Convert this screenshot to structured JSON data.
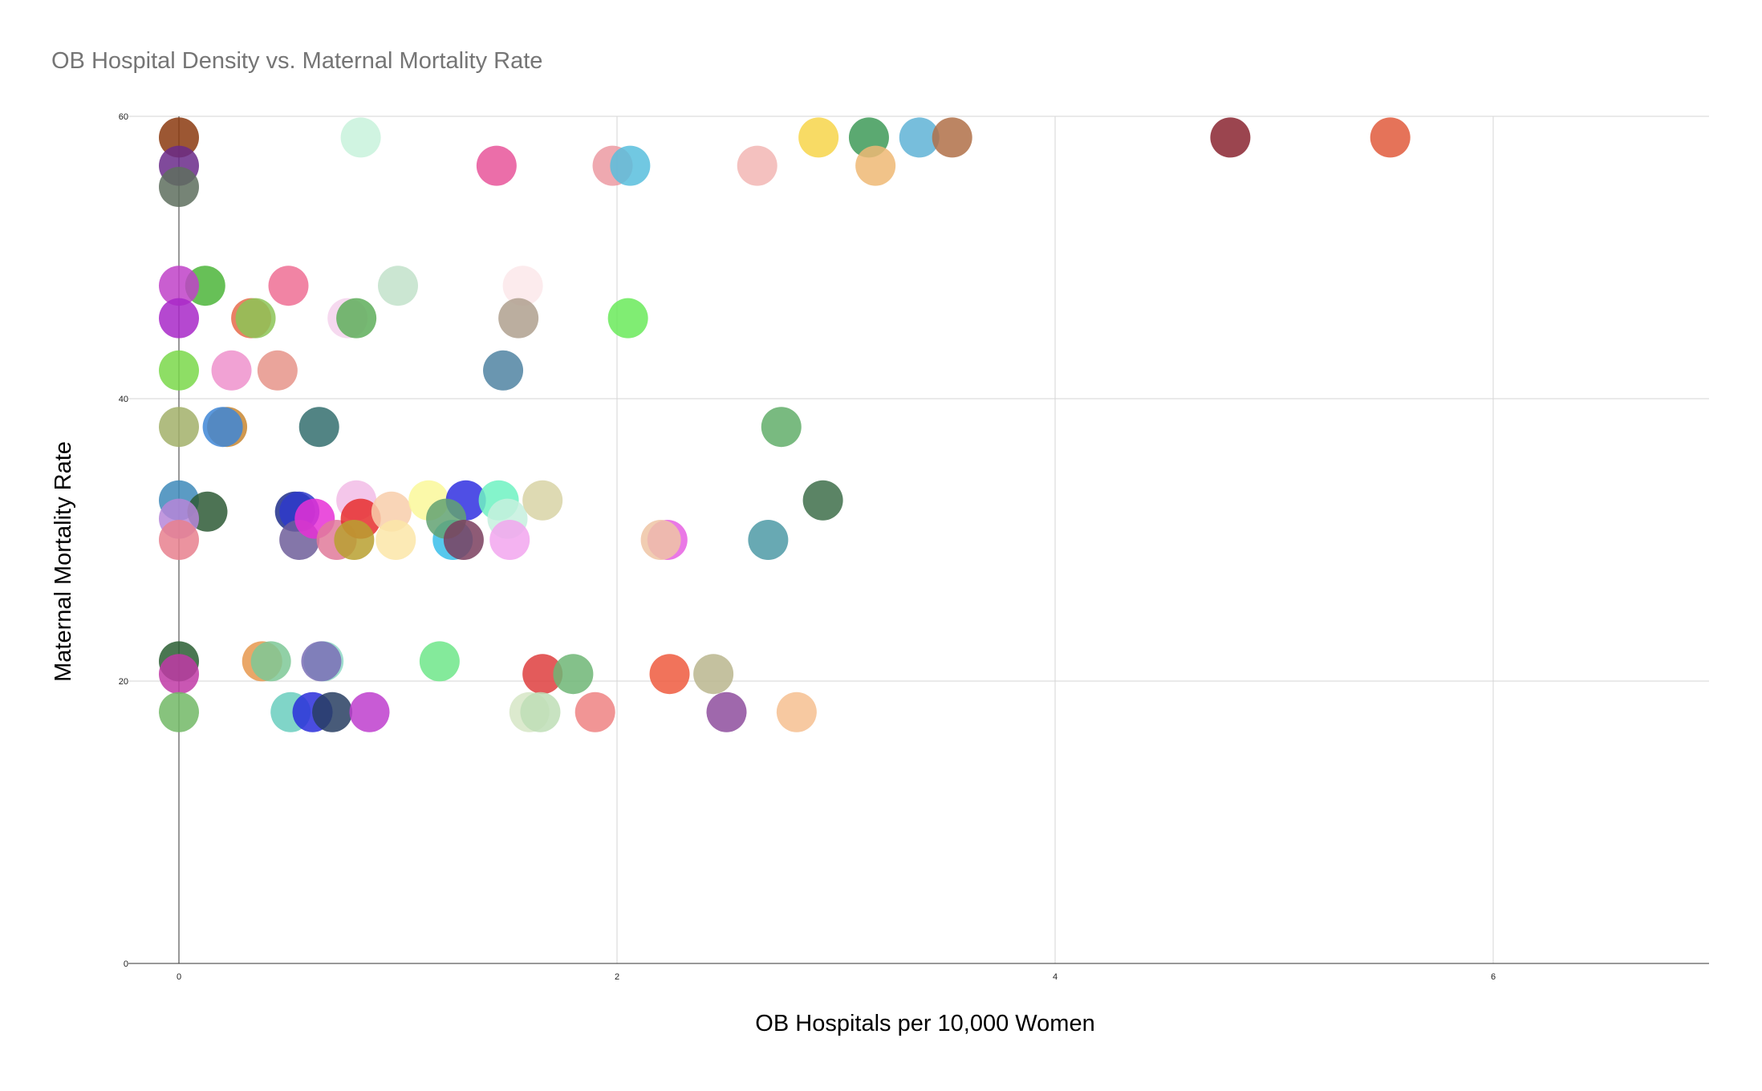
{
  "chart_data": {
    "type": "scatter",
    "title": "OB Hospital Density vs. Maternal Mortality Rate",
    "xlabel": "OB Hospitals per 10,000 Women",
    "ylabel": "Maternal Mortality Rate",
    "xlim": [
      0,
      7
    ],
    "ylim": [
      0,
      60
    ],
    "xticks": [
      0,
      2,
      4,
      6
    ],
    "yticks": [
      0,
      20,
      40,
      60
    ],
    "grid": true,
    "legend": "none",
    "points": [
      {
        "x": 0.0,
        "y": 58.5,
        "color": "#8B3A0F"
      },
      {
        "x": 0.83,
        "y": 58.5,
        "color": "#C8F2DC"
      },
      {
        "x": 2.92,
        "y": 58.5,
        "color": "#F7D54A"
      },
      {
        "x": 3.15,
        "y": 58.5,
        "color": "#3E9A58"
      },
      {
        "x": 3.38,
        "y": 58.5,
        "color": "#5FB3D6"
      },
      {
        "x": 3.53,
        "y": 58.5,
        "color": "#B07048"
      },
      {
        "x": 4.8,
        "y": 58.5,
        "color": "#8A2430"
      },
      {
        "x": 5.53,
        "y": 58.5,
        "color": "#E05A3C"
      },
      {
        "x": 0.0,
        "y": 56.5,
        "color": "#6A2A8A"
      },
      {
        "x": 1.45,
        "y": 56.5,
        "color": "#E8559A"
      },
      {
        "x": 1.98,
        "y": 56.5,
        "color": "#EC9AA2"
      },
      {
        "x": 2.06,
        "y": 56.5,
        "color": "#58BEDD"
      },
      {
        "x": 2.64,
        "y": 56.5,
        "color": "#F2B6B4"
      },
      {
        "x": 3.18,
        "y": 56.5,
        "color": "#EEB874"
      },
      {
        "x": 0.0,
        "y": 55.0,
        "color": "#5E6E5E"
      },
      {
        "x": 0.12,
        "y": 48.0,
        "color": "#4CB53A"
      },
      {
        "x": 0.0,
        "y": 48.0,
        "color": "#C042C8"
      },
      {
        "x": 0.5,
        "y": 48.0,
        "color": "#EE6E94"
      },
      {
        "x": 1.0,
        "y": 48.0,
        "color": "#C2E2CA"
      },
      {
        "x": 1.57,
        "y": 48.0,
        "color": "#FBE8EA"
      },
      {
        "x": 0.33,
        "y": 45.7,
        "color": "#E66A4A"
      },
      {
        "x": 0.35,
        "y": 45.7,
        "color": "#8CC456"
      },
      {
        "x": 0.77,
        "y": 45.7,
        "color": "#F5D2EC"
      },
      {
        "x": 0.81,
        "y": 45.7,
        "color": "#5EAE5A"
      },
      {
        "x": 1.55,
        "y": 45.7,
        "color": "#AFA08E"
      },
      {
        "x": 2.05,
        "y": 45.7,
        "color": "#6AEA5A"
      },
      {
        "x": 0.0,
        "y": 45.7,
        "color": "#A828C8"
      },
      {
        "x": 0.0,
        "y": 42.0,
        "color": "#7AD84A"
      },
      {
        "x": 0.24,
        "y": 42.0,
        "color": "#EE92CC"
      },
      {
        "x": 0.45,
        "y": 42.0,
        "color": "#E6948A"
      },
      {
        "x": 1.48,
        "y": 42.0,
        "color": "#5084A2"
      },
      {
        "x": 0.22,
        "y": 38.0,
        "color": "#C88630"
      },
      {
        "x": 0.2,
        "y": 38.0,
        "color": "#3E86D6"
      },
      {
        "x": 0.0,
        "y": 38.0,
        "color": "#A2B06A"
      },
      {
        "x": 0.64,
        "y": 38.0,
        "color": "#346E6E"
      },
      {
        "x": 2.75,
        "y": 38.0,
        "color": "#62AE6A"
      },
      {
        "x": 0.0,
        "y": 32.8,
        "color": "#3E8ABA"
      },
      {
        "x": 0.13,
        "y": 32.0,
        "color": "#2E5A36"
      },
      {
        "x": 0.0,
        "y": 31.5,
        "color": "#B686D8"
      },
      {
        "x": 0.0,
        "y": 30.0,
        "color": "#E8808E"
      },
      {
        "x": 0.53,
        "y": 32.0,
        "color": "#1E2E8A"
      },
      {
        "x": 0.55,
        "y": 32.0,
        "color": "#2E3ACA"
      },
      {
        "x": 0.55,
        "y": 30.0,
        "color": "#6E5E9A"
      },
      {
        "x": 0.62,
        "y": 31.5,
        "color": "#E630D6"
      },
      {
        "x": 0.72,
        "y": 30.0,
        "color": "#E07A9A"
      },
      {
        "x": 0.81,
        "y": 32.8,
        "color": "#F2BCE6"
      },
      {
        "x": 0.83,
        "y": 31.5,
        "color": "#E62E2E"
      },
      {
        "x": 0.8,
        "y": 30.0,
        "color": "#B8A030"
      },
      {
        "x": 0.97,
        "y": 32.0,
        "color": "#F8CEAA"
      },
      {
        "x": 0.99,
        "y": 30.0,
        "color": "#FBE6A8"
      },
      {
        "x": 1.14,
        "y": 32.8,
        "color": "#FAF89A"
      },
      {
        "x": 1.25,
        "y": 30.0,
        "color": "#38BEEA"
      },
      {
        "x": 1.31,
        "y": 32.8,
        "color": "#3030E0"
      },
      {
        "x": 1.22,
        "y": 31.5,
        "color": "#62A272"
      },
      {
        "x": 1.3,
        "y": 30.0,
        "color": "#7A3E5E"
      },
      {
        "x": 1.46,
        "y": 32.8,
        "color": "#6EF2C2"
      },
      {
        "x": 1.5,
        "y": 31.5,
        "color": "#C6F0DE"
      },
      {
        "x": 1.51,
        "y": 30.0,
        "color": "#F2A6EE"
      },
      {
        "x": 1.66,
        "y": 32.8,
        "color": "#D8D4A6"
      },
      {
        "x": 2.23,
        "y": 30.0,
        "color": "#E660E2"
      },
      {
        "x": 2.2,
        "y": 30.0,
        "color": "#EEC4A4"
      },
      {
        "x": 2.69,
        "y": 30.0,
        "color": "#4E9AA6"
      },
      {
        "x": 2.94,
        "y": 32.8,
        "color": "#3E6E4A"
      },
      {
        "x": 0.0,
        "y": 21.4,
        "color": "#2A5E32"
      },
      {
        "x": 0.0,
        "y": 20.5,
        "color": "#C03AA6"
      },
      {
        "x": 0.38,
        "y": 21.4,
        "color": "#E6984E"
      },
      {
        "x": 0.42,
        "y": 21.4,
        "color": "#7EC896"
      },
      {
        "x": 0.66,
        "y": 21.4,
        "color": "#8ED8C6"
      },
      {
        "x": 0.65,
        "y": 21.4,
        "color": "#7A6EB6"
      },
      {
        "x": 1.19,
        "y": 21.4,
        "color": "#6EE68A"
      },
      {
        "x": 1.66,
        "y": 20.5,
        "color": "#DE3E3E"
      },
      {
        "x": 1.8,
        "y": 20.5,
        "color": "#6EB676"
      },
      {
        "x": 2.24,
        "y": 20.5,
        "color": "#EE5A3E"
      },
      {
        "x": 2.44,
        "y": 20.5,
        "color": "#BAB68E"
      },
      {
        "x": 0.0,
        "y": 17.8,
        "color": "#72B866"
      },
      {
        "x": 0.51,
        "y": 17.8,
        "color": "#6ACEBE"
      },
      {
        "x": 0.61,
        "y": 17.8,
        "color": "#2A2EDA"
      },
      {
        "x": 0.7,
        "y": 17.8,
        "color": "#283E62"
      },
      {
        "x": 0.87,
        "y": 17.8,
        "color": "#BE3ECE"
      },
      {
        "x": 1.6,
        "y": 17.8,
        "color": "#D6E6C6"
      },
      {
        "x": 1.65,
        "y": 17.8,
        "color": "#BEDEB6"
      },
      {
        "x": 1.9,
        "y": 17.8,
        "color": "#EE8282"
      },
      {
        "x": 2.5,
        "y": 17.8,
        "color": "#8E4E9E"
      },
      {
        "x": 2.82,
        "y": 17.8,
        "color": "#F6C090"
      }
    ]
  }
}
